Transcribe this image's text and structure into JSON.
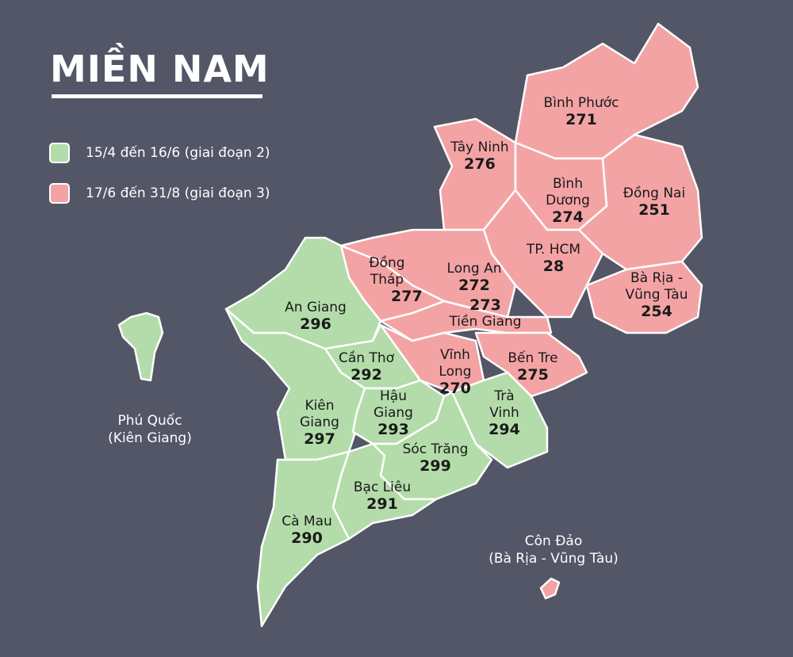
{
  "title": "MIỀN NAM",
  "colors": {
    "background": "#525667",
    "phase2": "#b3dcaa",
    "phase3": "#f4a3a5"
  },
  "legend": [
    {
      "label": "15/4 đến 16/6 (giai đoạn 2)",
      "color": "#b3dcaa"
    },
    {
      "label": "17/6 đến 31/8 (giai đoạn 3)",
      "color": "#f4a3a5"
    }
  ],
  "provinces": [
    {
      "name": "Bình Phước",
      "value": "271",
      "phase": 3
    },
    {
      "name": "Tây Ninh",
      "value": "276",
      "phase": 3
    },
    {
      "name": "Bình Dương",
      "value": "274",
      "phase": 3
    },
    {
      "name": "Đồng Nai",
      "value": "251",
      "phase": 3
    },
    {
      "name": "TP. HCM",
      "value": "28",
      "phase": 3
    },
    {
      "name": "Bà Rịa - Vũng Tàu",
      "value": "254",
      "phase": 3
    },
    {
      "name": "Long An",
      "value": "272",
      "phase": 3
    },
    {
      "name": "Tiền Giang",
      "value": "273",
      "phase": 3
    },
    {
      "name": "Đồng Tháp",
      "value": "277",
      "phase": 3
    },
    {
      "name": "Vĩnh Long",
      "value": "270",
      "phase": 3
    },
    {
      "name": "Bến Tre",
      "value": "275",
      "phase": 3
    },
    {
      "name": "Trà Vinh",
      "value": "294",
      "phase": 2
    },
    {
      "name": "An Giang",
      "value": "296",
      "phase": 2
    },
    {
      "name": "Cần Thơ",
      "value": "292",
      "phase": 2
    },
    {
      "name": "Kiên Giang",
      "value": "297",
      "phase": 2
    },
    {
      "name": "Hậu Giang",
      "value": "293",
      "phase": 2
    },
    {
      "name": "Sóc Trăng",
      "value": "299",
      "phase": 2
    },
    {
      "name": "Bạc Liêu",
      "value": "291",
      "phase": 2
    },
    {
      "name": "Cà Mau",
      "value": "290",
      "phase": 2
    }
  ],
  "islands": [
    {
      "name": "Phú Quốc",
      "parent": "(Kiên Giang)"
    },
    {
      "name": "Côn Đảo",
      "parent": "(Bà Rịa - Vũng Tàu)"
    }
  ]
}
